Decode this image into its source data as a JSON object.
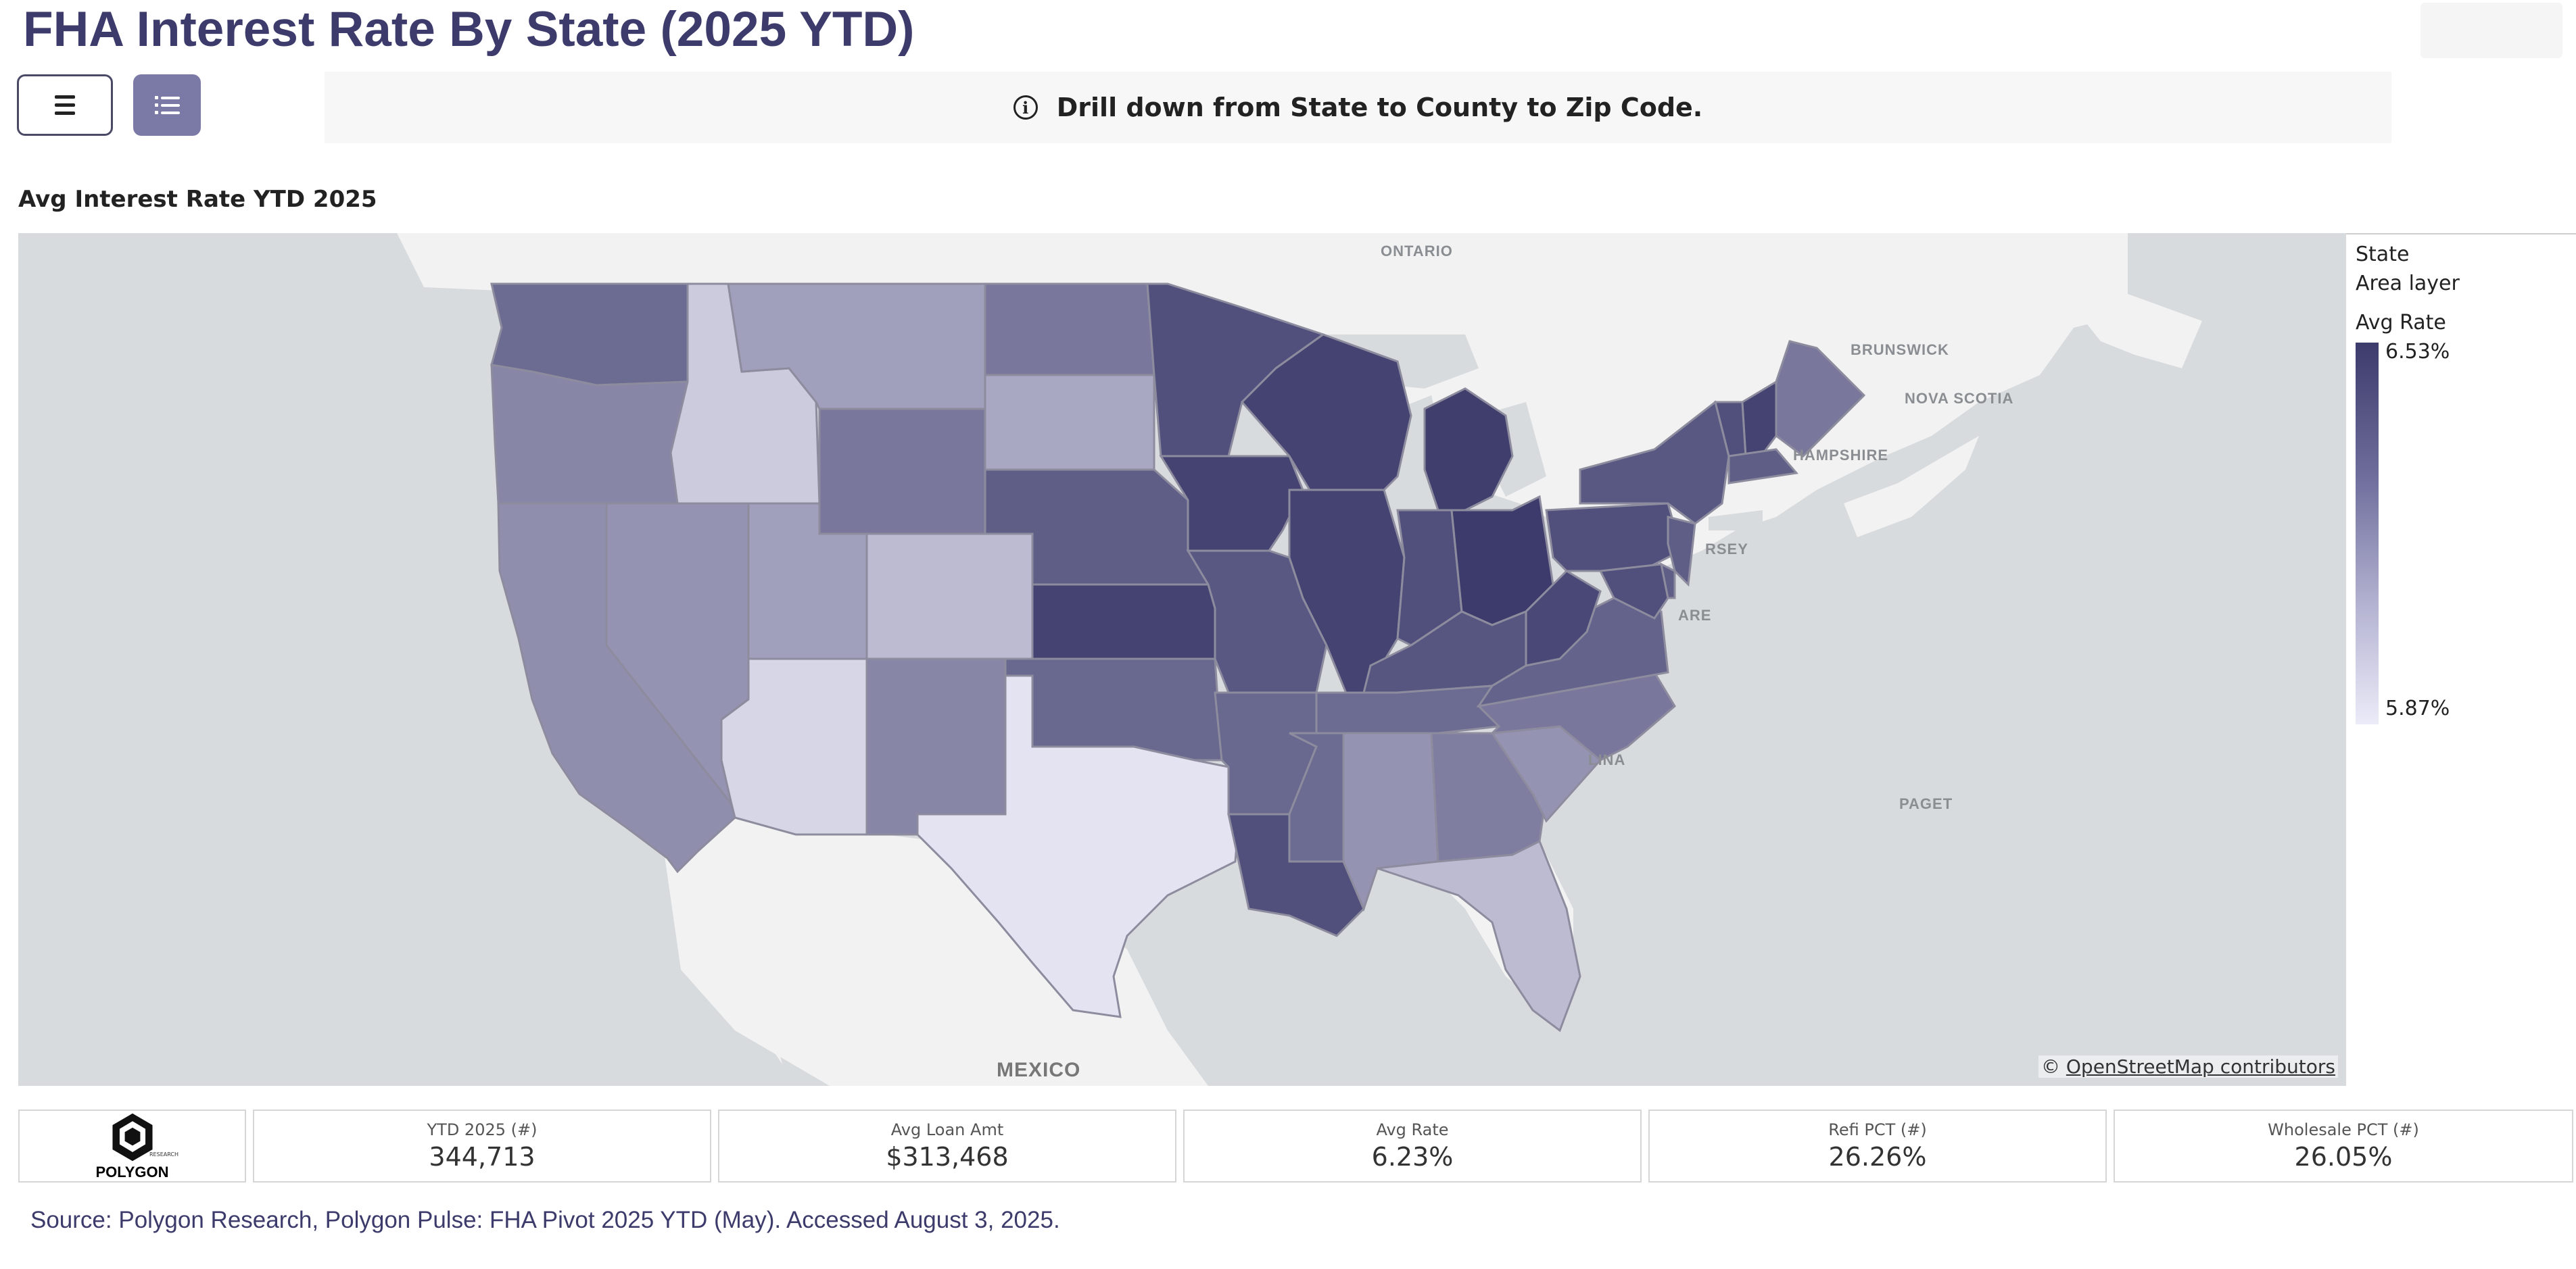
{
  "header": {
    "title": "FHA Interest Rate By State (2025 YTD)"
  },
  "toolbar": {
    "menu_icon": "hamburger-icon",
    "list_icon": "list-view-icon",
    "list_button_color": "#7b79a6"
  },
  "banner": {
    "icon": "info-icon",
    "text": "Drill down from State to County to Zip Code."
  },
  "section": {
    "title": "Avg Interest Rate YTD 2025"
  },
  "map": {
    "labels": {
      "ontario": "ONTARIO",
      "brunswick": "BRUNSWICK",
      "nova_scotia": "NOVA SCOTIA",
      "hampshire": "HAMPSHIRE",
      "jersey": "RSEY",
      "delaware": "ARE",
      "carolina": "LINA",
      "paget": "PAGET",
      "mexico": "MEXICO"
    },
    "attribution_prefix": "©",
    "attribution_link": "OpenStreetMap contributors",
    "colors": {
      "max": "#3c3b6b",
      "min": "#ecebf8",
      "water": "#d7dbde",
      "land": "#f2f2f2"
    },
    "state_rates": {
      "WA": 6.35,
      "OR": 6.25,
      "CA": 6.22,
      "NV": 6.2,
      "ID": 5.99,
      "MT": 6.15,
      "WY": 6.3,
      "UT": 6.15,
      "AZ": 5.95,
      "CO": 6.05,
      "NM": 6.25,
      "ND": 6.3,
      "SD": 6.12,
      "NE": 6.4,
      "KS": 6.5,
      "OK": 6.36,
      "TX": 5.9,
      "MN": 6.45,
      "IA": 6.5,
      "MO": 6.42,
      "AR": 6.36,
      "LA": 6.45,
      "WI": 6.5,
      "IL": 6.5,
      "MI": 6.52,
      "IN": 6.45,
      "OH": 6.53,
      "KY": 6.43,
      "TN": 6.35,
      "MS": 6.35,
      "AL": 6.2,
      "GA": 6.28,
      "FL": 6.05,
      "SC": 6.2,
      "NC": 6.3,
      "VA": 6.38,
      "WV": 6.48,
      "PA": 6.45,
      "NY": 6.42,
      "ME": 6.3,
      "VT": 6.45,
      "NH": 6.5,
      "MA": 6.4,
      "NJ": 6.4,
      "MD": 6.45,
      "DE": 6.4
    }
  },
  "legend": {
    "layer_name": "State",
    "layer_type": "Area layer",
    "measure": "Avg Rate",
    "max": "6.53%",
    "min": "5.87%",
    "max_value": 6.53,
    "min_value": 5.87
  },
  "logo": {
    "name": "POLYGON",
    "sub": "RESEARCH",
    "icon": "polygon-logo-icon"
  },
  "kpis": [
    {
      "label": "YTD 2025 (#)",
      "value": "344,713"
    },
    {
      "label": "Avg Loan Amt",
      "value": "$313,468"
    },
    {
      "label": "Avg Rate",
      "value": "6.23%"
    },
    {
      "label": "Refi PCT (#)",
      "value": "26.26%"
    },
    {
      "label": "Wholesale PCT (#)",
      "value": "26.05%"
    }
  ],
  "footer": {
    "source": "Source: Polygon Research, Polygon Pulse: FHA Pivot 2025 YTD (May). Accessed August 3, 2025."
  }
}
